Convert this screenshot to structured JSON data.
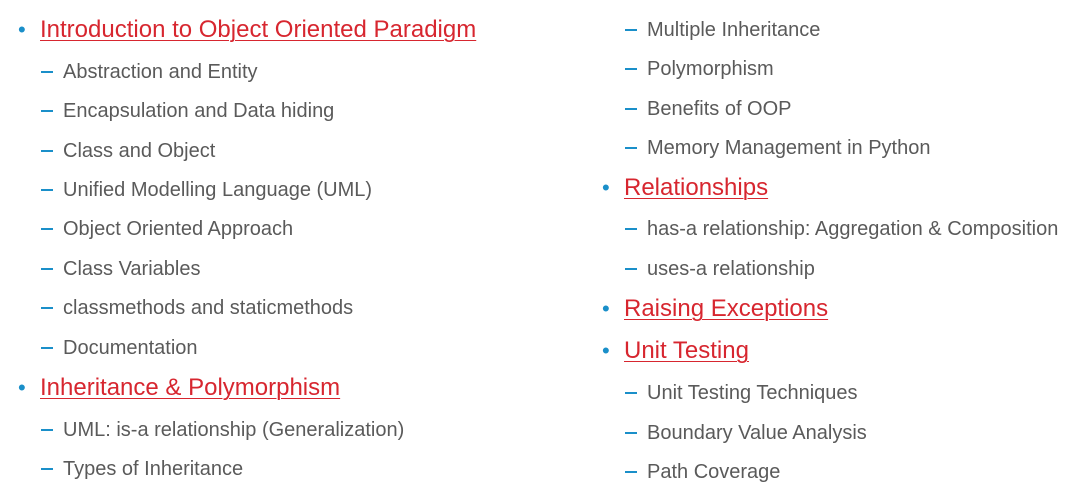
{
  "left_column": {
    "topics": [
      {
        "title": "Introduction to Object Oriented Paradigm",
        "subtopics": [
          "Abstraction and Entity",
          "Encapsulation and Data hiding",
          "Class and Object",
          "Unified Modelling Language (UML)",
          "Object Oriented Approach",
          "Class Variables",
          "classmethods and staticmethods",
          "Documentation"
        ]
      },
      {
        "title": "Inheritance & Polymorphism",
        "subtopics": [
          "UML: is-a relationship (Generalization)",
          "Types of Inheritance"
        ]
      }
    ]
  },
  "right_column": {
    "continued_subtopics": [
      "Multiple Inheritance",
      "Polymorphism",
      "Benefits of OOP",
      "Memory Management in Python"
    ],
    "topics": [
      {
        "title": "Relationships",
        "subtopics": [
          "has-a relationship: Aggregation & Composition",
          "uses-a relationship"
        ]
      },
      {
        "title": "Raising Exceptions",
        "subtopics": []
      },
      {
        "title": "Unit Testing",
        "subtopics": [
          "Unit Testing Techniques",
          "Boundary Value Analysis",
          "Path Coverage"
        ]
      }
    ]
  },
  "colors": {
    "heading": "#d7262f",
    "bullet": "#1a8fc9",
    "subtopic_text": "#5a5a5a"
  }
}
